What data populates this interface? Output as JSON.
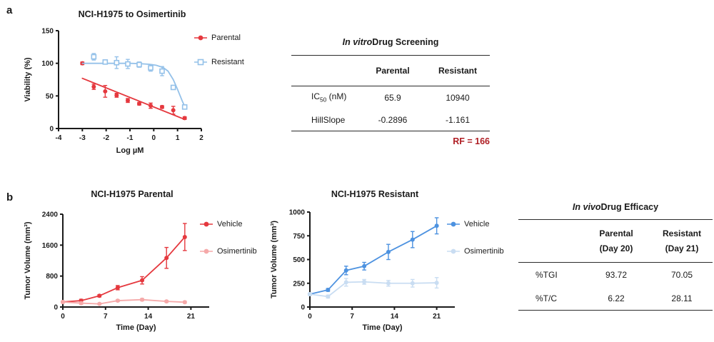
{
  "panel_labels": {
    "a": "a",
    "b": "b"
  },
  "colors": {
    "red": "#E5383E",
    "pink": "#F5A9A9",
    "blue": "#4D92E0",
    "light_blue": "#94C1E9",
    "pale_blue": "#C9DDF2",
    "axis": "#1b1b1b",
    "rf_red": "#AF1E24"
  },
  "chart_data": [
    {
      "id": "chart-a",
      "type": "scatter",
      "title": "NCI-H1975 to Osimertinib",
      "xlabel": "Log µM",
      "ylabel": "Viability (%)",
      "xlim": [
        -4,
        2
      ],
      "ylim": [
        0,
        150
      ],
      "xticks": [
        -4,
        -3,
        -2,
        -1,
        0,
        1,
        2
      ],
      "yticks": [
        0,
        50,
        100,
        150
      ],
      "grid": false,
      "legend_position": "right",
      "margins": {
        "l": 52,
        "r": 38,
        "t": 18,
        "b": 50
      },
      "series": [
        {
          "name": "Parental",
          "color": "#E5383E",
          "marker": "circle-filled",
          "points": [
            [
              -3.0,
              100,
              2
            ],
            [
              -2.52,
              64,
              4
            ],
            [
              -2.04,
              57,
              9
            ],
            [
              -1.56,
              51,
              3
            ],
            [
              -1.09,
              43,
              3
            ],
            [
              -0.61,
              38,
              2
            ],
            [
              -0.13,
              35,
              4
            ],
            [
              0.35,
              33,
              2
            ],
            [
              0.82,
              28,
              6
            ],
            [
              1.3,
              16,
              2
            ]
          ],
          "fit": [
            [
              -3,
              77
            ],
            [
              1.3,
              14
            ]
          ]
        },
        {
          "name": "Resistant",
          "color": "#94C1E9",
          "marker": "square-open",
          "points": [
            [
              -2.52,
              110,
              5
            ],
            [
              -2.04,
              102,
              3
            ],
            [
              -1.56,
              101,
              9
            ],
            [
              -1.09,
              99,
              7
            ],
            [
              -0.61,
              98,
              4
            ],
            [
              -0.13,
              93,
              5
            ],
            [
              0.35,
              88,
              7
            ],
            [
              0.82,
              63,
              2
            ],
            [
              1.3,
              33,
              2
            ]
          ],
          "fit": [
            [
              -3,
              100
            ],
            [
              -2.5,
              100
            ],
            [
              -2,
              100
            ],
            [
              -1.5,
              100
            ],
            [
              -1,
              100
            ],
            [
              -0.6,
              99.5
            ],
            [
              -0.2,
              98.5
            ],
            [
              0.1,
              97
            ],
            [
              0.4,
              93.5
            ],
            [
              0.6,
              88
            ],
            [
              0.82,
              75
            ],
            [
              1.0,
              60
            ],
            [
              1.1,
              51
            ],
            [
              1.2,
              42
            ],
            [
              1.3,
              34
            ]
          ]
        }
      ]
    },
    {
      "id": "chart-b1",
      "type": "line",
      "title": "NCI-H1975 Parental",
      "xlabel": "Time (Day)",
      "ylabel": "Tumor Volume (mm³)",
      "xlim": [
        0,
        24
      ],
      "ylim": [
        0,
        2400
      ],
      "xticks": [
        0,
        7,
        14,
        21
      ],
      "yticks": [
        0,
        800,
        1600,
        2400
      ],
      "grid": false,
      "legend_position": "right",
      "margins": {
        "l": 58,
        "r": 37,
        "t": 22,
        "b": 48
      },
      "series": [
        {
          "name": "Vehicle",
          "color": "#E5383E",
          "marker": "circle-filled",
          "points": [
            [
              0,
              130,
              15
            ],
            [
              3,
              165,
              35
            ],
            [
              6,
              290,
              30
            ],
            [
              9,
              500,
              55
            ],
            [
              13,
              690,
              95
            ],
            [
              17,
              1270,
              270
            ],
            [
              20,
              1810,
              350
            ]
          ]
        },
        {
          "name": "Osimertinib",
          "color": "#F5A9A9",
          "marker": "circle-filled",
          "points": [
            [
              0,
              130,
              15
            ],
            [
              3,
              100,
              30
            ],
            [
              6,
              80,
              20
            ],
            [
              9,
              165,
              25
            ],
            [
              13,
              190,
              30
            ],
            [
              17,
              145,
              25
            ],
            [
              20,
              125,
              25
            ]
          ]
        }
      ]
    },
    {
      "id": "chart-b2",
      "type": "line",
      "title": "NCI-H1975 Resistant",
      "xlabel": "Time (Day)",
      "ylabel": "Tumor Volume (mm³)",
      "xlim": [
        0,
        24
      ],
      "ylim": [
        0,
        1000
      ],
      "xticks": [
        0,
        7,
        14,
        21
      ],
      "yticks": [
        0,
        250,
        500,
        750,
        1000
      ],
      "grid": false,
      "legend_position": "right",
      "margins": {
        "l": 59,
        "r": 38,
        "t": 19,
        "b": 48
      },
      "series": [
        {
          "name": "Vehicle",
          "color": "#4D92E0",
          "marker": "circle-filled",
          "points": [
            [
              0,
              135,
              10
            ],
            [
              3,
              180,
              15
            ],
            [
              6,
              385,
              45
            ],
            [
              9,
              430,
              40
            ],
            [
              13,
              580,
              80
            ],
            [
              17,
              710,
              85
            ],
            [
              21,
              855,
              85
            ]
          ]
        },
        {
          "name": "Osimertinib",
          "color": "#C9DDF2",
          "marker": "circle-filled",
          "points": [
            [
              0,
              135,
              10
            ],
            [
              3,
              110,
              15
            ],
            [
              6,
              260,
              40
            ],
            [
              9,
              265,
              25
            ],
            [
              13,
              250,
              30
            ],
            [
              17,
              250,
              40
            ],
            [
              21,
              255,
              55
            ]
          ]
        }
      ]
    }
  ],
  "tables": {
    "invitro": {
      "title_italic": "In vitro",
      "title_rest": " Drug Screening",
      "col1": "Parental",
      "col2": "Resistant",
      "row1": {
        "label_main": "IC",
        "label_sub": "50",
        "label_unit": " (nM)",
        "parental": "65.9",
        "resistant": "10940"
      },
      "row2": {
        "label": "HillSlope",
        "parental": "-0.2896",
        "resistant": "-1.161"
      },
      "rf_note": "RF = 166"
    },
    "invivo": {
      "title_italic": "In vivo",
      "title_rest": " Drug Efficacy",
      "col1_line1": "Parental",
      "col1_line2": "(Day 20)",
      "col2_line1": "Resistant",
      "col2_line2": "(Day 21)",
      "row1": {
        "label": "%TGI",
        "parental": "93.72",
        "resistant": "70.05"
      },
      "row2": {
        "label": "%T/C",
        "parental": "6.22",
        "resistant": "28.11"
      }
    }
  }
}
